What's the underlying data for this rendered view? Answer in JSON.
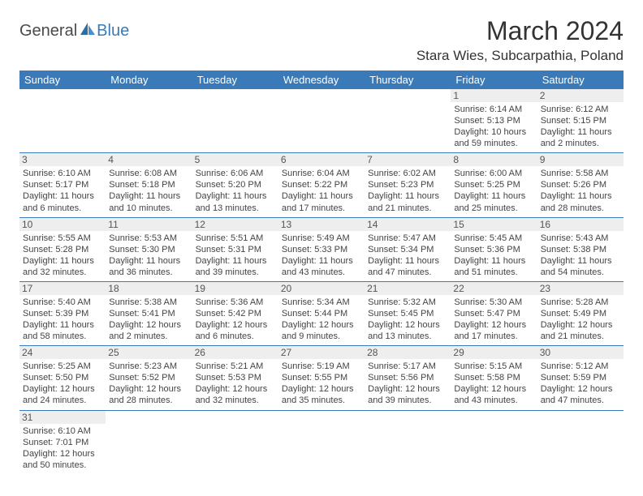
{
  "logo": {
    "general": "General",
    "blue": "Blue"
  },
  "title": "March 2024",
  "location": "Stara Wies, Subcarpathia, Poland",
  "headerBg": "#3a7ab8",
  "headerFg": "#ffffff",
  "dayNumBg": "#eeeeee",
  "borderColor": "#3a7ab8",
  "dayHeaders": [
    "Sunday",
    "Monday",
    "Tuesday",
    "Wednesday",
    "Thursday",
    "Friday",
    "Saturday"
  ],
  "weeks": [
    [
      null,
      null,
      null,
      null,
      null,
      {
        "n": "1",
        "sr": "6:14 AM",
        "ss": "5:13 PM",
        "dl": "10 hours and 59 minutes."
      },
      {
        "n": "2",
        "sr": "6:12 AM",
        "ss": "5:15 PM",
        "dl": "11 hours and 2 minutes."
      }
    ],
    [
      {
        "n": "3",
        "sr": "6:10 AM",
        "ss": "5:17 PM",
        "dl": "11 hours and 6 minutes."
      },
      {
        "n": "4",
        "sr": "6:08 AM",
        "ss": "5:18 PM",
        "dl": "11 hours and 10 minutes."
      },
      {
        "n": "5",
        "sr": "6:06 AM",
        "ss": "5:20 PM",
        "dl": "11 hours and 13 minutes."
      },
      {
        "n": "6",
        "sr": "6:04 AM",
        "ss": "5:22 PM",
        "dl": "11 hours and 17 minutes."
      },
      {
        "n": "7",
        "sr": "6:02 AM",
        "ss": "5:23 PM",
        "dl": "11 hours and 21 minutes."
      },
      {
        "n": "8",
        "sr": "6:00 AM",
        "ss": "5:25 PM",
        "dl": "11 hours and 25 minutes."
      },
      {
        "n": "9",
        "sr": "5:58 AM",
        "ss": "5:26 PM",
        "dl": "11 hours and 28 minutes."
      }
    ],
    [
      {
        "n": "10",
        "sr": "5:55 AM",
        "ss": "5:28 PM",
        "dl": "11 hours and 32 minutes."
      },
      {
        "n": "11",
        "sr": "5:53 AM",
        "ss": "5:30 PM",
        "dl": "11 hours and 36 minutes."
      },
      {
        "n": "12",
        "sr": "5:51 AM",
        "ss": "5:31 PM",
        "dl": "11 hours and 39 minutes."
      },
      {
        "n": "13",
        "sr": "5:49 AM",
        "ss": "5:33 PM",
        "dl": "11 hours and 43 minutes."
      },
      {
        "n": "14",
        "sr": "5:47 AM",
        "ss": "5:34 PM",
        "dl": "11 hours and 47 minutes."
      },
      {
        "n": "15",
        "sr": "5:45 AM",
        "ss": "5:36 PM",
        "dl": "11 hours and 51 minutes."
      },
      {
        "n": "16",
        "sr": "5:43 AM",
        "ss": "5:38 PM",
        "dl": "11 hours and 54 minutes."
      }
    ],
    [
      {
        "n": "17",
        "sr": "5:40 AM",
        "ss": "5:39 PM",
        "dl": "11 hours and 58 minutes."
      },
      {
        "n": "18",
        "sr": "5:38 AM",
        "ss": "5:41 PM",
        "dl": "12 hours and 2 minutes."
      },
      {
        "n": "19",
        "sr": "5:36 AM",
        "ss": "5:42 PM",
        "dl": "12 hours and 6 minutes."
      },
      {
        "n": "20",
        "sr": "5:34 AM",
        "ss": "5:44 PM",
        "dl": "12 hours and 9 minutes."
      },
      {
        "n": "21",
        "sr": "5:32 AM",
        "ss": "5:45 PM",
        "dl": "12 hours and 13 minutes."
      },
      {
        "n": "22",
        "sr": "5:30 AM",
        "ss": "5:47 PM",
        "dl": "12 hours and 17 minutes."
      },
      {
        "n": "23",
        "sr": "5:28 AM",
        "ss": "5:49 PM",
        "dl": "12 hours and 21 minutes."
      }
    ],
    [
      {
        "n": "24",
        "sr": "5:25 AM",
        "ss": "5:50 PM",
        "dl": "12 hours and 24 minutes."
      },
      {
        "n": "25",
        "sr": "5:23 AM",
        "ss": "5:52 PM",
        "dl": "12 hours and 28 minutes."
      },
      {
        "n": "26",
        "sr": "5:21 AM",
        "ss": "5:53 PM",
        "dl": "12 hours and 32 minutes."
      },
      {
        "n": "27",
        "sr": "5:19 AM",
        "ss": "5:55 PM",
        "dl": "12 hours and 35 minutes."
      },
      {
        "n": "28",
        "sr": "5:17 AM",
        "ss": "5:56 PM",
        "dl": "12 hours and 39 minutes."
      },
      {
        "n": "29",
        "sr": "5:15 AM",
        "ss": "5:58 PM",
        "dl": "12 hours and 43 minutes."
      },
      {
        "n": "30",
        "sr": "5:12 AM",
        "ss": "5:59 PM",
        "dl": "12 hours and 47 minutes."
      }
    ],
    [
      {
        "n": "31",
        "sr": "6:10 AM",
        "ss": "7:01 PM",
        "dl": "12 hours and 50 minutes."
      },
      null,
      null,
      null,
      null,
      null,
      null
    ]
  ],
  "labels": {
    "sunrise": "Sunrise:",
    "sunset": "Sunset:",
    "daylight": "Daylight:"
  }
}
